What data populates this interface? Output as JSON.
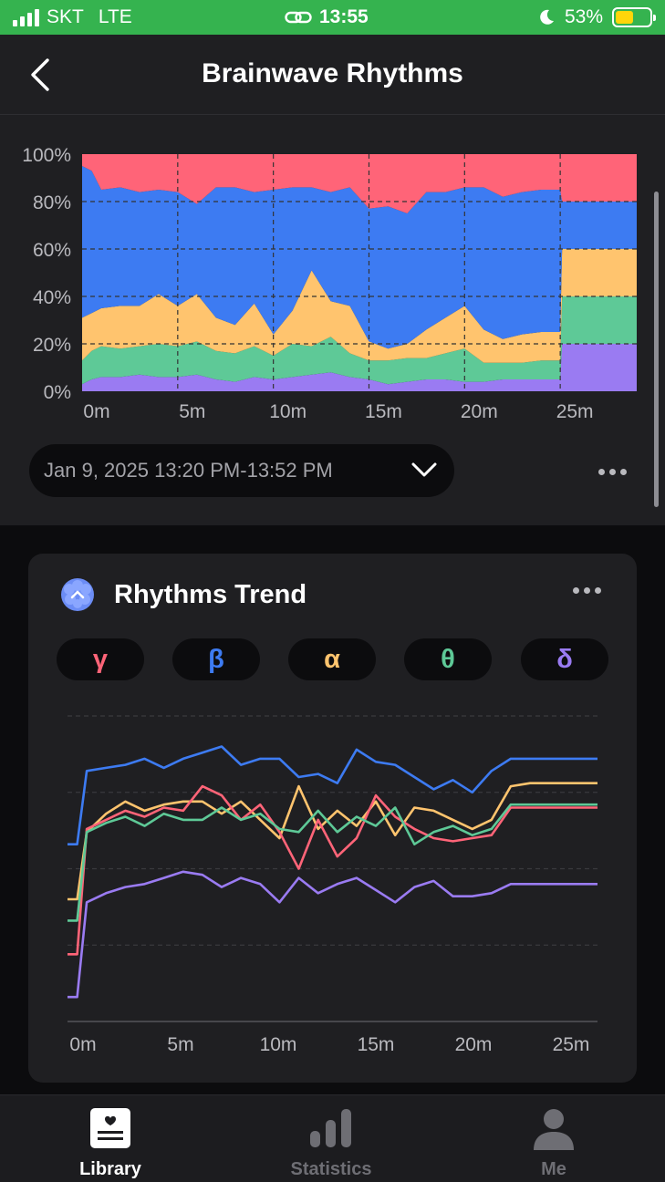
{
  "status_bar": {
    "carrier": "SKT",
    "network": "LTE",
    "time": "13:55",
    "battery": "53%",
    "battery_level": 0.53
  },
  "header": {
    "title": "Brainwave Rhythms"
  },
  "stack_chart": {
    "type": "area",
    "y_ticks": [
      "0%",
      "20%",
      "40%",
      "60%",
      "80%",
      "100%"
    ],
    "x_ticks": [
      "0m",
      "5m",
      "10m",
      "15m",
      "20m",
      "25m"
    ],
    "ylim": [
      0,
      100
    ],
    "xlim": [
      0,
      29
    ],
    "stacked": true,
    "grid": true,
    "colors": {
      "gamma": "#ff6478",
      "beta": "#3d7bf2",
      "alpha": "#ffc46e",
      "theta": "#5ec997",
      "delta": "#9a7bf2"
    }
  },
  "date_range": {
    "label": "Jan 9, 2025 13:20 PM-13:52 PM"
  },
  "trend_card": {
    "title": "Rhythms Trend",
    "chips": [
      {
        "symbol": "γ",
        "color": "#ff6478"
      },
      {
        "symbol": "β",
        "color": "#3d7bf2"
      },
      {
        "symbol": "α",
        "color": "#ffc46e"
      },
      {
        "symbol": "θ",
        "color": "#5ec997"
      },
      {
        "symbol": "δ",
        "color": "#9a7bf2"
      }
    ],
    "x_ticks": [
      "0m",
      "5m",
      "10m",
      "15m",
      "20m",
      "25m"
    ]
  },
  "chart_data": [
    {
      "type": "area",
      "title": "",
      "xlabel": "",
      "ylabel": "",
      "ylim": [
        0,
        100
      ],
      "stacked": true,
      "x": [
        0,
        0.5,
        1,
        2,
        3,
        4,
        5,
        6,
        7,
        8,
        9,
        10,
        11,
        12,
        13,
        14,
        15,
        16,
        17,
        18,
        19,
        20,
        21,
        22,
        23,
        24,
        25,
        25.1,
        29
      ],
      "series": [
        {
          "name": "δ",
          "values": [
            3,
            5,
            6,
            6,
            7,
            6,
            6,
            7,
            5,
            4,
            6,
            5,
            6,
            7,
            8,
            6,
            5,
            3,
            4,
            5,
            5,
            4,
            4,
            5,
            5,
            5,
            5,
            20,
            20
          ]
        },
        {
          "name": "θ",
          "values": [
            10,
            12,
            13,
            12,
            12,
            14,
            13,
            14,
            12,
            12,
            13,
            10,
            14,
            12,
            15,
            10,
            8,
            10,
            10,
            9,
            11,
            14,
            8,
            7,
            7,
            8,
            8,
            20,
            20
          ]
        },
        {
          "name": "α",
          "values": [
            18,
            16,
            16,
            18,
            17,
            21,
            17,
            20,
            14,
            12,
            18,
            9,
            14,
            32,
            15,
            20,
            8,
            5,
            6,
            12,
            15,
            18,
            14,
            10,
            12,
            12,
            12,
            20,
            20
          ]
        },
        {
          "name": "β",
          "values": [
            64,
            60,
            50,
            50,
            48,
            44,
            48,
            38,
            55,
            58,
            47,
            61,
            52,
            35,
            46,
            50,
            56,
            60,
            55,
            58,
            53,
            50,
            60,
            60,
            60,
            60,
            60,
            20,
            20
          ]
        },
        {
          "name": "γ",
          "values": [
            5,
            7,
            15,
            14,
            16,
            15,
            16,
            21,
            14,
            14,
            16,
            15,
            14,
            14,
            16,
            14,
            23,
            22,
            25,
            16,
            16,
            14,
            14,
            18,
            16,
            15,
            15,
            20,
            20
          ]
        }
      ]
    },
    {
      "type": "line",
      "title": "",
      "xlabel": "",
      "ylabel": "",
      "ylim": [
        0,
        100
      ],
      "x": [
        0,
        0.5,
        1,
        2,
        3,
        4,
        5,
        6,
        7,
        8,
        9,
        10,
        11,
        12,
        13,
        14,
        15,
        16,
        17,
        18,
        19,
        20,
        21,
        22,
        23,
        24,
        25,
        27.5
      ],
      "series": [
        {
          "name": "β",
          "values": [
            58,
            58,
            82,
            83,
            84,
            86,
            83,
            86,
            88,
            90,
            84,
            86,
            86,
            80,
            81,
            78,
            89,
            85,
            84,
            80,
            76,
            79,
            75,
            82,
            86,
            86,
            86,
            86
          ]
        },
        {
          "name": "α",
          "values": [
            40,
            40,
            62,
            68,
            72,
            69,
            71,
            72,
            72,
            68,
            72,
            66,
            60,
            77,
            63,
            69,
            64,
            72,
            61,
            70,
            69,
            66,
            63,
            66,
            77,
            78,
            78,
            78
          ]
        },
        {
          "name": "γ",
          "values": [
            22,
            22,
            63,
            66,
            69,
            67,
            70,
            69,
            77,
            74,
            66,
            71,
            62,
            50,
            66,
            54,
            60,
            74,
            67,
            63,
            60,
            59,
            60,
            61,
            70,
            70,
            70,
            70
          ]
        },
        {
          "name": "θ",
          "values": [
            33,
            33,
            62,
            65,
            67,
            64,
            68,
            66,
            66,
            70,
            66,
            68,
            63,
            62,
            69,
            62,
            67,
            64,
            70,
            58,
            62,
            64,
            61,
            63,
            71,
            71,
            71,
            71
          ]
        },
        {
          "name": "δ",
          "values": [
            8,
            8,
            39,
            42,
            44,
            45,
            47,
            49,
            48,
            44,
            47,
            45,
            39,
            47,
            42,
            45,
            47,
            43,
            39,
            44,
            46,
            41,
            41,
            42,
            45,
            45,
            45,
            45
          ]
        }
      ]
    }
  ],
  "tab_bar": {
    "items": [
      {
        "label": "Library",
        "active": true,
        "icon": "library-icon"
      },
      {
        "label": "Statistics",
        "active": false,
        "icon": "statistics-icon"
      },
      {
        "label": "Me",
        "active": false,
        "icon": "person-icon"
      }
    ]
  }
}
